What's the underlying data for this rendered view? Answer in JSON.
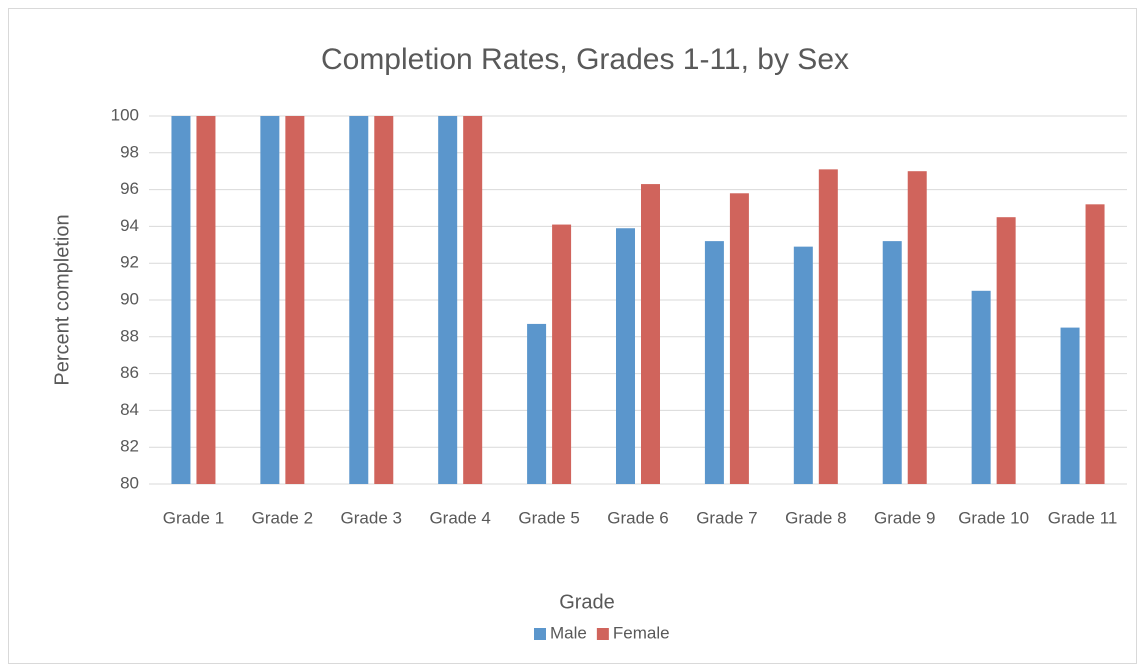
{
  "chart_data": {
    "type": "bar",
    "title": "Completion Rates, Grades 1-11, by Sex",
    "x_label": "Grade",
    "y_label": "Percent completion",
    "categories": [
      "Grade 1",
      "Grade 2",
      "Grade 3",
      "Grade 4",
      "Grade 5",
      "Grade 6",
      "Grade 7",
      "Grade 8",
      "Grade 9",
      "Grade 10",
      "Grade 11"
    ],
    "series": [
      {
        "name": "Male",
        "color": "#5b96cc",
        "values": [
          100,
          100,
          100,
          100,
          88.7,
          93.9,
          93.2,
          92.9,
          93.2,
          90.5,
          88.5
        ]
      },
      {
        "name": "Female",
        "color": "#d0645c",
        "values": [
          100,
          100,
          100,
          100,
          94.1,
          96.3,
          95.8,
          97.1,
          97.0,
          94.5,
          95.2
        ]
      }
    ],
    "ylim": [
      80,
      100
    ],
    "yticks": [
      80,
      82,
      84,
      86,
      88,
      90,
      92,
      94,
      96,
      98,
      100
    ],
    "grid": true,
    "legend": "bottom"
  }
}
